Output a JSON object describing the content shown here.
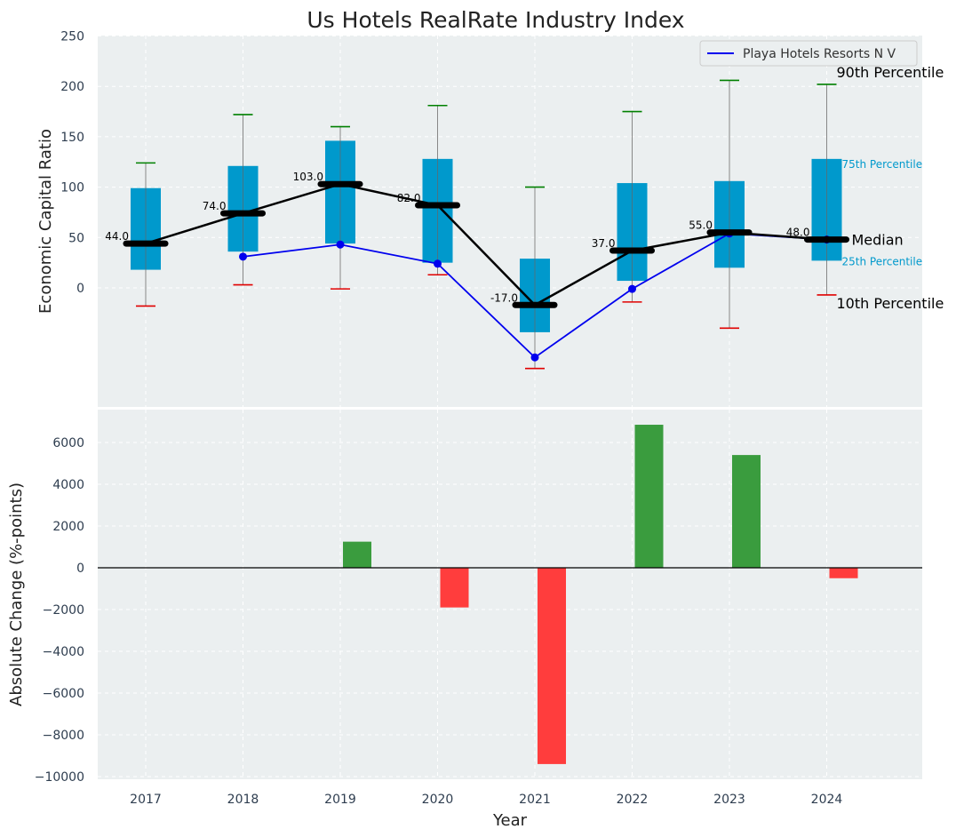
{
  "chart_data": [
    {
      "type": "box",
      "title": "Us Hotels RealRate Industry Index",
      "ylabel": "Economic Capital Ratio",
      "xlabel": "",
      "ylim": [
        -120,
        250
      ],
      "yticks": [
        0,
        50,
        100,
        150,
        200,
        250
      ],
      "categories": [
        "2017",
        "2018",
        "2019",
        "2020",
        "2021",
        "2022",
        "2023",
        "2024"
      ],
      "p10": [
        -18,
        3,
        -1,
        13,
        -80,
        -14,
        -40,
        -7
      ],
      "p25": [
        18,
        36,
        44,
        25,
        -44,
        7,
        20,
        27
      ],
      "median": [
        44,
        74,
        103,
        82,
        -17,
        37,
        55,
        48
      ],
      "p75": [
        99,
        121,
        146,
        128,
        29,
        104,
        106,
        128
      ],
      "p90": [
        124,
        172,
        160,
        181,
        100,
        175,
        206,
        202
      ],
      "median_labels": [
        "44.0",
        "74.0",
        "103.0",
        "82.0",
        "-17.0",
        "37.0",
        "55.0",
        "48.0"
      ],
      "company_series": {
        "name": "Playa Hotels Resorts N V",
        "color": "#0000ee",
        "x": [
          "2018",
          "2019",
          "2020",
          "2021",
          "2022",
          "2023",
          "2024"
        ],
        "values": [
          31,
          43,
          24,
          -69,
          -1,
          54,
          48
        ]
      },
      "annotations": {
        "p90": "90th Percentile",
        "p75": "75th Percentile",
        "median": "Median",
        "p25": "25th Percentile",
        "p10": "10th Percentile"
      },
      "legend": {
        "position": "top-right",
        "entries": [
          "Playa Hotels Resorts N V"
        ]
      },
      "grid": true
    },
    {
      "type": "bar",
      "ylabel": "Absolute Change (%-points)",
      "xlabel": "Year",
      "categories": [
        "2017",
        "2018",
        "2019",
        "2020",
        "2021",
        "2022",
        "2023",
        "2024"
      ],
      "values": [
        0,
        0,
        1250,
        -1900,
        -9400,
        6850,
        5400,
        -500
      ],
      "ylim": [
        -10100,
        7700
      ],
      "yticks": [
        -10000,
        -8000,
        -6000,
        -4000,
        -2000,
        0,
        2000,
        4000,
        6000
      ],
      "ytick_labels": [
        "−10000",
        "−8000",
        "−6000",
        "−4000",
        "−2000",
        "0",
        "2000",
        "4000",
        "6000"
      ],
      "positive_color": "#3a9c3e",
      "negative_color": "#ff3d3d",
      "grid": true
    }
  ],
  "colors": {
    "box": "#0099cc",
    "median": "#000000",
    "p90_cap": "#008000",
    "p10_cap": "#e00000",
    "panel_bg": "#ebeff0"
  }
}
